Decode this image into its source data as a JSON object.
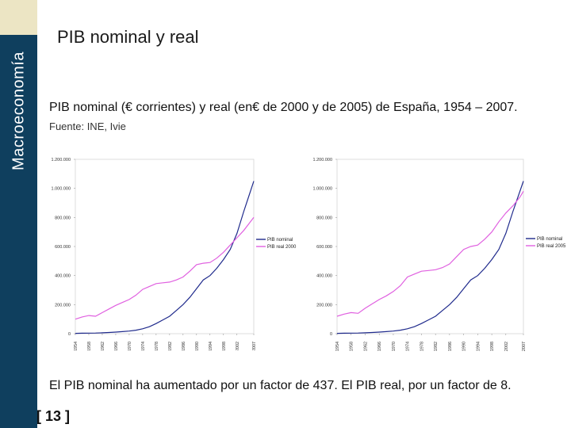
{
  "sidebar": {
    "label": "Macroeconomía"
  },
  "header": {
    "title": "PIB nominal y real"
  },
  "subtitle": "PIB nominal (€ corrientes) y real (en€ de 2000 y de 2005) de España, 1954 – 2007.",
  "source": "Fuente: INE, Ivie",
  "conclusion": "El PIB nominal ha aumentado por un factor de 437. El PIB real, por un factor de 8.",
  "page_number": "[ 13 ]",
  "colors": {
    "sidebar": "#0f3f5e",
    "accent": "#ece5c4",
    "nominal": "#1f2a8c",
    "real": "#e060e0"
  },
  "chart_data": [
    {
      "type": "line",
      "title": "",
      "xlabel": "",
      "ylabel": "",
      "ylim": [
        0,
        1200000
      ],
      "yticks": [
        "0",
        "200.000",
        "400.000",
        "600.000",
        "800.000",
        "1.000.000",
        "1.200.000"
      ],
      "ytick_values": [
        0,
        200000,
        400000,
        600000,
        800000,
        1000000,
        1200000
      ],
      "xticks": [
        "1954",
        "1958",
        "1962",
        "1966",
        "1970",
        "1974",
        "1978",
        "1982",
        "1986",
        "1990",
        "1994",
        "1998",
        "2002",
        "2007"
      ],
      "legend_position": "right",
      "x": [
        1954,
        1956,
        1958,
        1960,
        1962,
        1964,
        1966,
        1968,
        1970,
        1972,
        1974,
        1976,
        1978,
        1980,
        1982,
        1984,
        1986,
        1988,
        1990,
        1992,
        1994,
        1996,
        1998,
        2000,
        2002,
        2004,
        2006,
        2007
      ],
      "series": [
        {
          "name": "PIB nominal",
          "values": [
            2400,
            3000,
            3800,
            4500,
            5800,
            8000,
            11000,
            14000,
            18000,
            24000,
            34000,
            48000,
            70000,
            95000,
            120000,
            160000,
            200000,
            250000,
            310000,
            370000,
            400000,
            450000,
            510000,
            580000,
            690000,
            840000,
            980000,
            1050000
          ]
        },
        {
          "name": "PIB real 2000",
          "values": [
            100000,
            115000,
            125000,
            120000,
            145000,
            170000,
            195000,
            215000,
            235000,
            265000,
            305000,
            325000,
            345000,
            350000,
            355000,
            370000,
            390000,
            430000,
            475000,
            485000,
            490000,
            520000,
            560000,
            610000,
            660000,
            710000,
            770000,
            800000
          ]
        }
      ]
    },
    {
      "type": "line",
      "title": "",
      "xlabel": "",
      "ylabel": "",
      "ylim": [
        0,
        1200000
      ],
      "yticks": [
        "0",
        "200.000",
        "400.000",
        "600.000",
        "800.000",
        "1.000.000",
        "1.200.000"
      ],
      "ytick_values": [
        0,
        200000,
        400000,
        600000,
        800000,
        1000000,
        1200000
      ],
      "xticks": [
        "1954",
        "1958",
        "1962",
        "1966",
        "1970",
        "1974",
        "1978",
        "1982",
        "1986",
        "1990",
        "1994",
        "1998",
        "2002",
        "2007"
      ],
      "legend_position": "right",
      "x": [
        1954,
        1956,
        1958,
        1960,
        1962,
        1964,
        1966,
        1968,
        1970,
        1972,
        1974,
        1976,
        1978,
        1980,
        1982,
        1984,
        1986,
        1988,
        1990,
        1992,
        1994,
        1996,
        1998,
        2000,
        2002,
        2004,
        2006,
        2007
      ],
      "series": [
        {
          "name": "PIB nominal",
          "values": [
            2400,
            3000,
            3800,
            4500,
            5800,
            8000,
            11000,
            14000,
            18000,
            24000,
            34000,
            48000,
            70000,
            95000,
            120000,
            160000,
            200000,
            250000,
            310000,
            370000,
            400000,
            450000,
            510000,
            580000,
            690000,
            840000,
            980000,
            1050000
          ]
        },
        {
          "name": "PIB real 2005",
          "values": [
            120000,
            135000,
            145000,
            140000,
            175000,
            205000,
            235000,
            260000,
            290000,
            330000,
            390000,
            410000,
            430000,
            435000,
            440000,
            455000,
            480000,
            530000,
            580000,
            600000,
            610000,
            650000,
            700000,
            770000,
            830000,
            880000,
            940000,
            980000
          ]
        }
      ]
    }
  ]
}
